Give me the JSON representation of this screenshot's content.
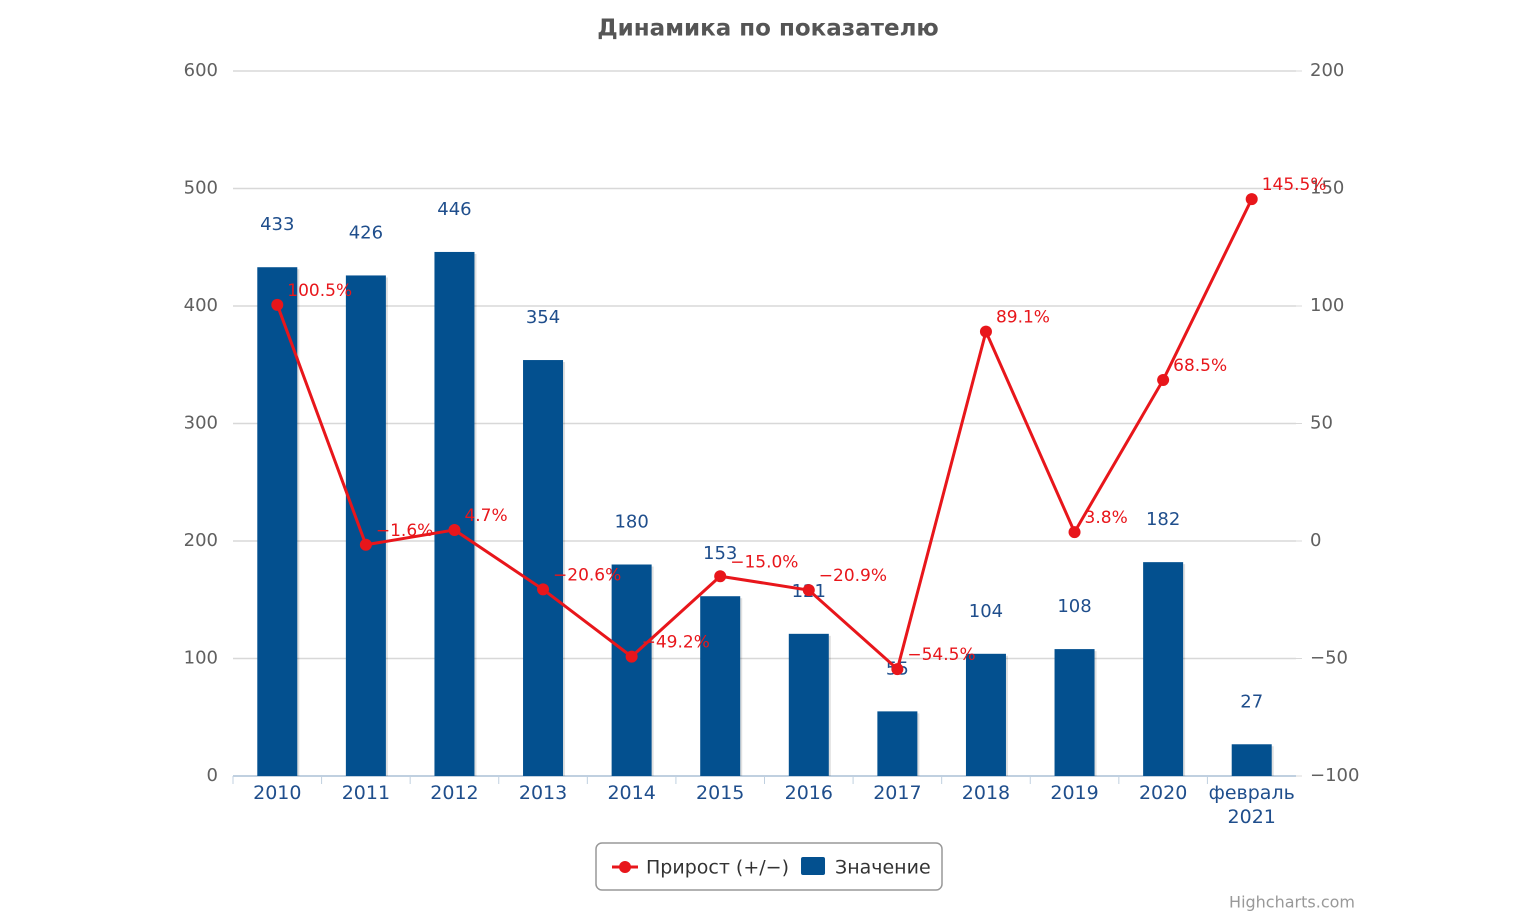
{
  "chart_data": {
    "type": "combo",
    "title": "Динамика по показателю",
    "categories": [
      "2010",
      "2011",
      "2012",
      "2013",
      "2014",
      "2015",
      "2016",
      "2017",
      "2018",
      "2019",
      "2020",
      "февраль 2021"
    ],
    "series": [
      {
        "name": "Прирост (+/−)",
        "type": "line",
        "axis": "y2",
        "color": "#e8161b",
        "values": [
          100.5,
          -1.6,
          4.7,
          -20.6,
          -49.2,
          -15.0,
          -20.9,
          -54.5,
          89.1,
          3.8,
          68.5,
          145.5
        ],
        "value_labels": [
          "100.5%",
          "−1.6%",
          "4.7%",
          "−20.6%",
          "−49.2%",
          "−15.0%",
          "−20.9%",
          "−54.5%",
          "89.1%",
          "3.8%",
          "68.5%",
          "145.5%"
        ]
      },
      {
        "name": "Значение",
        "type": "bar",
        "color": "#03508f",
        "values": [
          433,
          426,
          446,
          354,
          180,
          153,
          121,
          55,
          104,
          108,
          182,
          27
        ]
      }
    ],
    "ylim": [
      0,
      600
    ],
    "yticks": [
      0,
      100,
      200,
      300,
      400,
      500,
      600
    ],
    "y2lim": [
      -100,
      200
    ],
    "y2ticks": [
      {
        "value": -100,
        "label": "−100"
      },
      {
        "value": -50,
        "label": "−50"
      },
      0,
      50,
      100,
      150,
      200
    ],
    "grid": true,
    "legend": "bottom",
    "credits": "Highcharts.com"
  }
}
